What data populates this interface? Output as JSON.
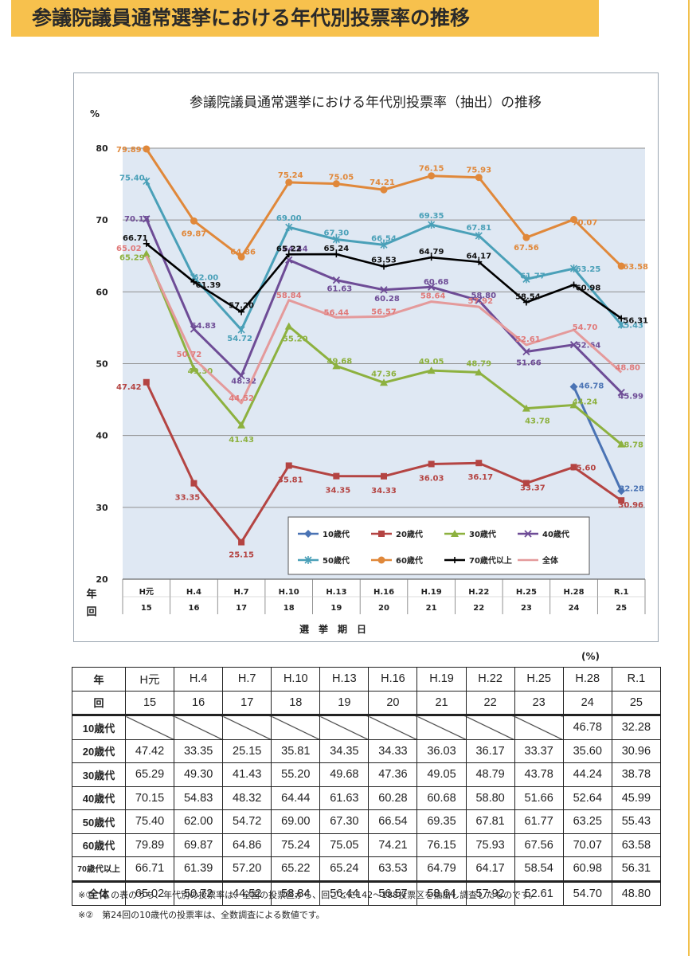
{
  "header": {
    "title": "参議院議員通常選挙における年代別投票率の推移"
  },
  "chart_data": {
    "type": "line",
    "title": "参議院議員通常選挙における年代別投票率（抽出）の推移",
    "ylabel": "%",
    "xlabel": "選　挙　期　日",
    "ylim": [
      20,
      80
    ],
    "yticks": [
      20,
      30,
      40,
      50,
      60,
      70,
      80
    ],
    "row_label_nen": "年",
    "row_label_kai": "回",
    "categories": [
      "H元",
      "H.4",
      "H.7",
      "H.10",
      "H.13",
      "H.16",
      "H.19",
      "H.22",
      "H.25",
      "H.28",
      "R.1"
    ],
    "sessions": [
      "15",
      "16",
      "17",
      "18",
      "19",
      "20",
      "21",
      "22",
      "23",
      "24",
      "25"
    ],
    "legend_position": "bottom-right",
    "series": [
      {
        "name": "10歳代",
        "color": "#4a73b4",
        "marker": "diamond",
        "values": [
          null,
          null,
          null,
          null,
          null,
          null,
          null,
          null,
          null,
          46.78,
          32.28
        ],
        "labels": [
          "",
          "",
          "",
          "",
          "",
          "",
          "",
          "",
          "",
          "46.78",
          "32.28"
        ]
      },
      {
        "name": "20歳代",
        "color": "#b44442",
        "marker": "square",
        "values": [
          47.42,
          33.35,
          25.15,
          35.81,
          34.35,
          34.33,
          36.03,
          36.17,
          33.37,
          35.6,
          30.96
        ],
        "labels": [
          "47.42",
          "33.35",
          "25.15",
          "35.81",
          "34.35",
          "34.33",
          "36.03",
          "36.17",
          "33.37",
          "35.60",
          "30.96"
        ]
      },
      {
        "name": "30歳代",
        "color": "#8db13f",
        "marker": "triangle",
        "values": [
          65.29,
          49.3,
          41.43,
          55.2,
          49.68,
          47.36,
          49.05,
          48.79,
          43.78,
          44.24,
          38.78
        ],
        "labels": [
          "65.29",
          "49.30",
          "41.43",
          "55.20",
          "49.68",
          "47.36",
          "49.05",
          "48.79",
          "43.78",
          "44.24",
          "38.78"
        ]
      },
      {
        "name": "40歳代",
        "color": "#6e4c96",
        "marker": "x",
        "values": [
          70.15,
          54.83,
          48.32,
          64.44,
          61.63,
          60.28,
          60.68,
          58.8,
          51.66,
          52.64,
          45.99
        ],
        "labels": [
          "70.15",
          "54.83",
          "48.32",
          "64.44",
          "61.63",
          "60.28",
          "60.68",
          "58.80",
          "51.66",
          "52.64",
          "45.99"
        ]
      },
      {
        "name": "50歳代",
        "color": "#4aa0b8",
        "marker": "star",
        "values": [
          75.4,
          62.0,
          54.72,
          69.0,
          67.3,
          66.54,
          69.35,
          67.81,
          61.77,
          63.25,
          55.43
        ],
        "labels": [
          "75.40",
          "62.00",
          "54.72",
          "69.00",
          "67.30",
          "66.54",
          "69.35",
          "67.81",
          "61.77",
          "63.25",
          "55.43"
        ]
      },
      {
        "name": "60歳代",
        "color": "#e0883a",
        "marker": "circle",
        "values": [
          79.89,
          69.87,
          64.86,
          75.24,
          75.05,
          74.21,
          76.15,
          75.93,
          67.56,
          70.07,
          63.58
        ],
        "labels": [
          "79.89",
          "69.87",
          "64.86",
          "75.24",
          "75.05",
          "74.21",
          "76.15",
          "75.93",
          "67.56",
          "70.07",
          "63.58"
        ]
      },
      {
        "name": "70歳代以上",
        "color": "#000000",
        "marker": "plus",
        "values": [
          66.71,
          61.39,
          57.2,
          65.22,
          65.24,
          63.53,
          64.79,
          64.17,
          58.54,
          60.98,
          56.31
        ],
        "labels": [
          "66.71",
          "61.39",
          "57.20",
          "65.22",
          "65.24",
          "63.53",
          "64.79",
          "64.17",
          "58.54",
          "60.98",
          "56.31"
        ]
      },
      {
        "name": "全体",
        "color": "#e49a9b",
        "marker": "none",
        "values": [
          65.02,
          50.72,
          44.52,
          58.84,
          56.44,
          56.57,
          58.64,
          57.92,
          52.61,
          54.7,
          48.8
        ],
        "labels": [
          "65.02",
          "50.72",
          "44.52",
          "58.84",
          "56.44",
          "56.57",
          "58.64",
          "57.92",
          "52.61",
          "54.70",
          "48.80"
        ]
      }
    ]
  },
  "table": {
    "unit": "(%)",
    "header_nen": "年",
    "header_kai": "回",
    "years": [
      "H元",
      "H.4",
      "H.7",
      "H.10",
      "H.13",
      "H.16",
      "H.19",
      "H.22",
      "H.25",
      "H.28",
      "R.1"
    ],
    "sessions": [
      "15",
      "16",
      "17",
      "18",
      "19",
      "20",
      "21",
      "22",
      "23",
      "24",
      "25"
    ],
    "rows": [
      {
        "label": "10歳代",
        "cells": [
          "",
          "",
          "",
          "",
          "",
          "",
          "",
          "",
          "",
          "46.78",
          "32.28"
        ]
      },
      {
        "label": "20歳代",
        "cells": [
          "47.42",
          "33.35",
          "25.15",
          "35.81",
          "34.35",
          "34.33",
          "36.03",
          "36.17",
          "33.37",
          "35.60",
          "30.96"
        ]
      },
      {
        "label": "30歳代",
        "cells": [
          "65.29",
          "49.30",
          "41.43",
          "55.20",
          "49.68",
          "47.36",
          "49.05",
          "48.79",
          "43.78",
          "44.24",
          "38.78"
        ]
      },
      {
        "label": "40歳代",
        "cells": [
          "70.15",
          "54.83",
          "48.32",
          "64.44",
          "61.63",
          "60.28",
          "60.68",
          "58.80",
          "51.66",
          "52.64",
          "45.99"
        ]
      },
      {
        "label": "50歳代",
        "cells": [
          "75.40",
          "62.00",
          "54.72",
          "69.00",
          "67.30",
          "66.54",
          "69.35",
          "67.81",
          "61.77",
          "63.25",
          "55.43"
        ]
      },
      {
        "label": "60歳代",
        "cells": [
          "79.89",
          "69.87",
          "64.86",
          "75.24",
          "75.05",
          "74.21",
          "76.15",
          "75.93",
          "67.56",
          "70.07",
          "63.58"
        ]
      },
      {
        "label": "70歳代以上",
        "cells": [
          "66.71",
          "61.39",
          "57.20",
          "65.22",
          "65.24",
          "63.53",
          "64.79",
          "64.17",
          "58.54",
          "60.98",
          "56.31"
        ]
      },
      {
        "label": "全体",
        "cells": [
          "65.02",
          "50.72",
          "44.52",
          "58.84",
          "56.44",
          "56.57",
          "58.64",
          "57.92",
          "52.61",
          "54.70",
          "48.80"
        ]
      }
    ]
  },
  "notes": {
    "note1": "※①　この表のうち、年代別の投票率は、全国の投票区から、回ごとに142～188投票区を抽出し調査したものです。",
    "note2": "※②　第24回の10歳代の投票率は、全数調査による数値です。"
  }
}
